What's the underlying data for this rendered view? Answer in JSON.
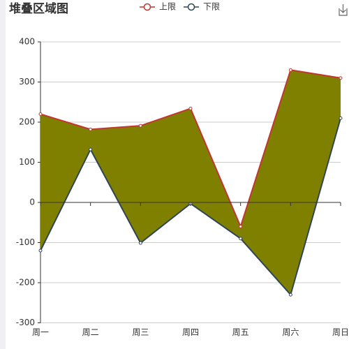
{
  "chart_data": {
    "type": "area-range",
    "title": "堆叠区域图",
    "categories": [
      "周一",
      "周二",
      "周三",
      "周四",
      "周五",
      "周六",
      "周日"
    ],
    "series": [
      {
        "name": "上限",
        "color": "#c23531",
        "values": [
          220,
          182,
          191,
          234,
          -60,
          330,
          310
        ]
      },
      {
        "name": "下限",
        "color": "#2f4554",
        "values": [
          -120,
          132,
          -101,
          -3,
          -90,
          -230,
          210
        ]
      }
    ],
    "fill": "#808000",
    "ylim": [
      -300,
      400
    ],
    "yticks": [
      -300,
      -200,
      -100,
      0,
      100,
      200,
      300,
      400
    ],
    "grid": true
  }
}
